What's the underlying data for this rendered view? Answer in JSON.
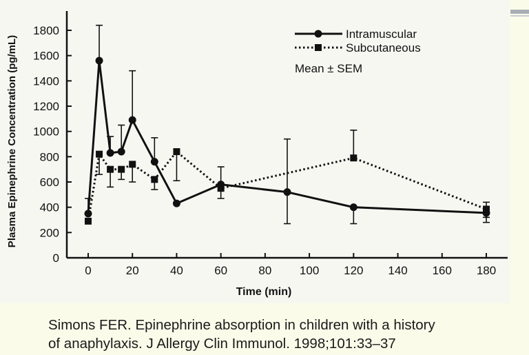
{
  "chart_data": {
    "type": "line",
    "xlabel": "Time (min)",
    "ylabel": "Plasma Epinephrine Concentration (pg/mL)",
    "xlim": [
      0,
      180
    ],
    "ylim": [
      0,
      1800
    ],
    "xticks": [
      0,
      20,
      40,
      60,
      80,
      100,
      120,
      140,
      160,
      180
    ],
    "yticks": [
      0,
      200,
      400,
      600,
      800,
      1000,
      1200,
      1400,
      1600,
      1800
    ],
    "grid": false,
    "legend_position": "top-right",
    "annotation": "Mean ± SEM",
    "series": [
      {
        "name": "Intramuscular",
        "style": "solid",
        "marker": "circle",
        "x": [
          0,
          5,
          10,
          15,
          20,
          30,
          40,
          60,
          90,
          120,
          180
        ],
        "y": [
          350,
          1560,
          830,
          840,
          1090,
          760,
          430,
          580,
          520,
          400,
          355
        ],
        "err_upper": [
          470,
          1840,
          960,
          1050,
          1480,
          950,
          430,
          720,
          940,
          400,
          360
        ],
        "err_lower": [
          350,
          1560,
          830,
          840,
          1090,
          760,
          430,
          580,
          270,
          270,
          280
        ]
      },
      {
        "name": "Subcutaneous",
        "style": "dotted",
        "marker": "square",
        "x": [
          0,
          5,
          10,
          15,
          20,
          30,
          40,
          60,
          120,
          180
        ],
        "y": [
          290,
          820,
          700,
          700,
          740,
          620,
          840,
          550,
          790,
          385
        ],
        "err_upper": [
          290,
          820,
          700,
          700,
          740,
          620,
          840,
          550,
          1010,
          440
        ],
        "err_lower": [
          290,
          660,
          560,
          620,
          600,
          540,
          610,
          470,
          790,
          320
        ]
      }
    ],
    "colors": {
      "line": "#111111",
      "background": "#f7f7f2"
    }
  },
  "citation": {
    "line1": "Simons FER. Epinephrine absorption in children with a history",
    "line2": "of anaphylaxis. J Allergy Clin Immunol. 1998;101:33–37"
  }
}
